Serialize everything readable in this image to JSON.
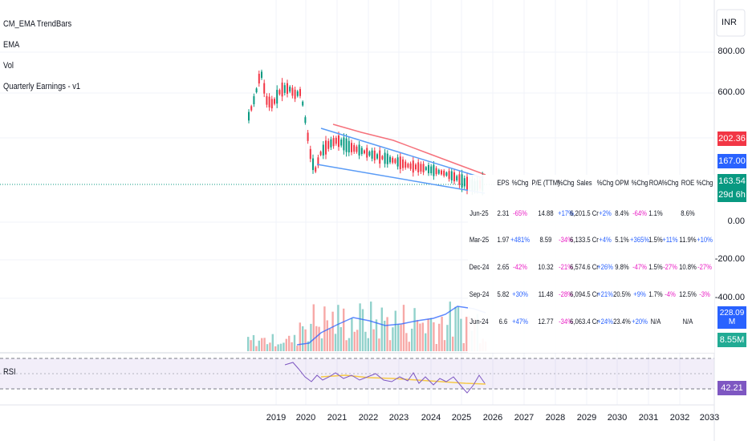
{
  "indicators": [
    "CM_EMA TrendBars",
    "EMA",
    "Vol",
    "Quarterly Earnings - v1"
  ],
  "rsi_label": "RSI",
  "currency": "INR",
  "price_axis": [
    "800.00",
    "600.00",
    "0.00",
    "-200.00",
    "-400.00"
  ],
  "badges": {
    "ema_red": "202.36",
    "channel_blue": "167.00",
    "last_price": "163.54",
    "countdown": "29d 6h",
    "volume_ma": "228.09 M",
    "volume": "8.55M",
    "rsi": "42.21"
  },
  "years": [
    "2019",
    "2020",
    "2021",
    "2022",
    "2023",
    "2024",
    "2025",
    "2026",
    "2027",
    "2028",
    "2029",
    "2030",
    "2031",
    "2032",
    "2033"
  ],
  "table": {
    "header": [
      "EPS",
      "%Chg",
      "P/E (TTM)",
      "%Chg",
      "Sales",
      "%Chg",
      "OPM",
      "%Chg",
      "ROA",
      "%Chg",
      "ROE",
      "%Chg"
    ],
    "rows": [
      [
        "Jun-25",
        "2.31",
        "-65%",
        "14.88",
        "+17%",
        "6,201.5 Cr",
        "+2%",
        "8.4%",
        "-64%",
        "1.1%",
        null,
        "8.6%",
        null
      ],
      [
        "Mar-25",
        "1.97",
        "+481%",
        "8.59",
        "-34%",
        "6,133.5 Cr",
        "+4%",
        "5.1%",
        "+365%",
        "1.5%",
        "+11%",
        "11.9%",
        "+10%"
      ],
      [
        "Dec-24",
        "2.65",
        "-42%",
        "10.32",
        "-21%",
        "6,574.6 Cr",
        "+26%",
        "9.8%",
        "-47%",
        "1.5%",
        "-27%",
        "10.8%",
        "-27%"
      ],
      [
        "Sep-24",
        "5.82",
        "+30%",
        "11.48",
        "-28%",
        "6,094.5 Cr",
        "+21%",
        "20.5%",
        "+9%",
        "1.7%",
        "-4%",
        "12.5%",
        "-3%"
      ],
      [
        "Jun-24",
        "6.6",
        "+47%",
        "12.77",
        "-34%",
        "6,063.4 Cr",
        "+24%",
        "23.4%",
        "+20%",
        "N/A",
        null,
        "N/A",
        null
      ]
    ]
  }
}
